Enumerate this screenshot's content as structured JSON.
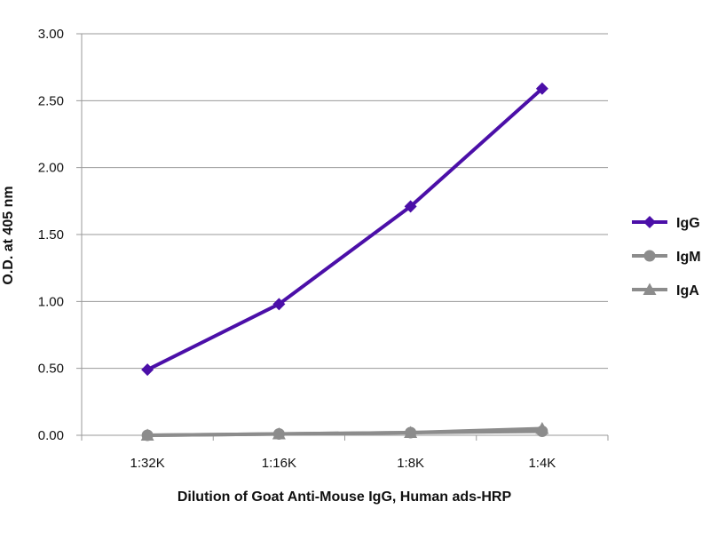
{
  "chart_data": {
    "type": "line",
    "title": "",
    "xlabel": "Dilution of Goat Anti-Mouse IgG, Human ads-HRP",
    "ylabel": "O.D. at 405 nm",
    "categories": [
      "1:32K",
      "1:16K",
      "1:8K",
      "1:4K"
    ],
    "ylim": [
      0,
      3
    ],
    "yticks": [
      "0.00",
      "0.50",
      "1.00",
      "1.50",
      "2.00",
      "2.50",
      "3.00"
    ],
    "grid": true,
    "legend_position": "right",
    "series": [
      {
        "name": "IgG",
        "values": [
          0.49,
          0.98,
          1.71,
          2.59
        ],
        "color": "#4B0FA8",
        "marker": "diamond"
      },
      {
        "name": "IgM",
        "values": [
          0.0,
          0.01,
          0.02,
          0.03
        ],
        "color": "#8C8C8C",
        "marker": "circle"
      },
      {
        "name": "IgA",
        "values": [
          0.0,
          0.01,
          0.02,
          0.05
        ],
        "color": "#8C8C8C",
        "marker": "triangle"
      }
    ]
  }
}
